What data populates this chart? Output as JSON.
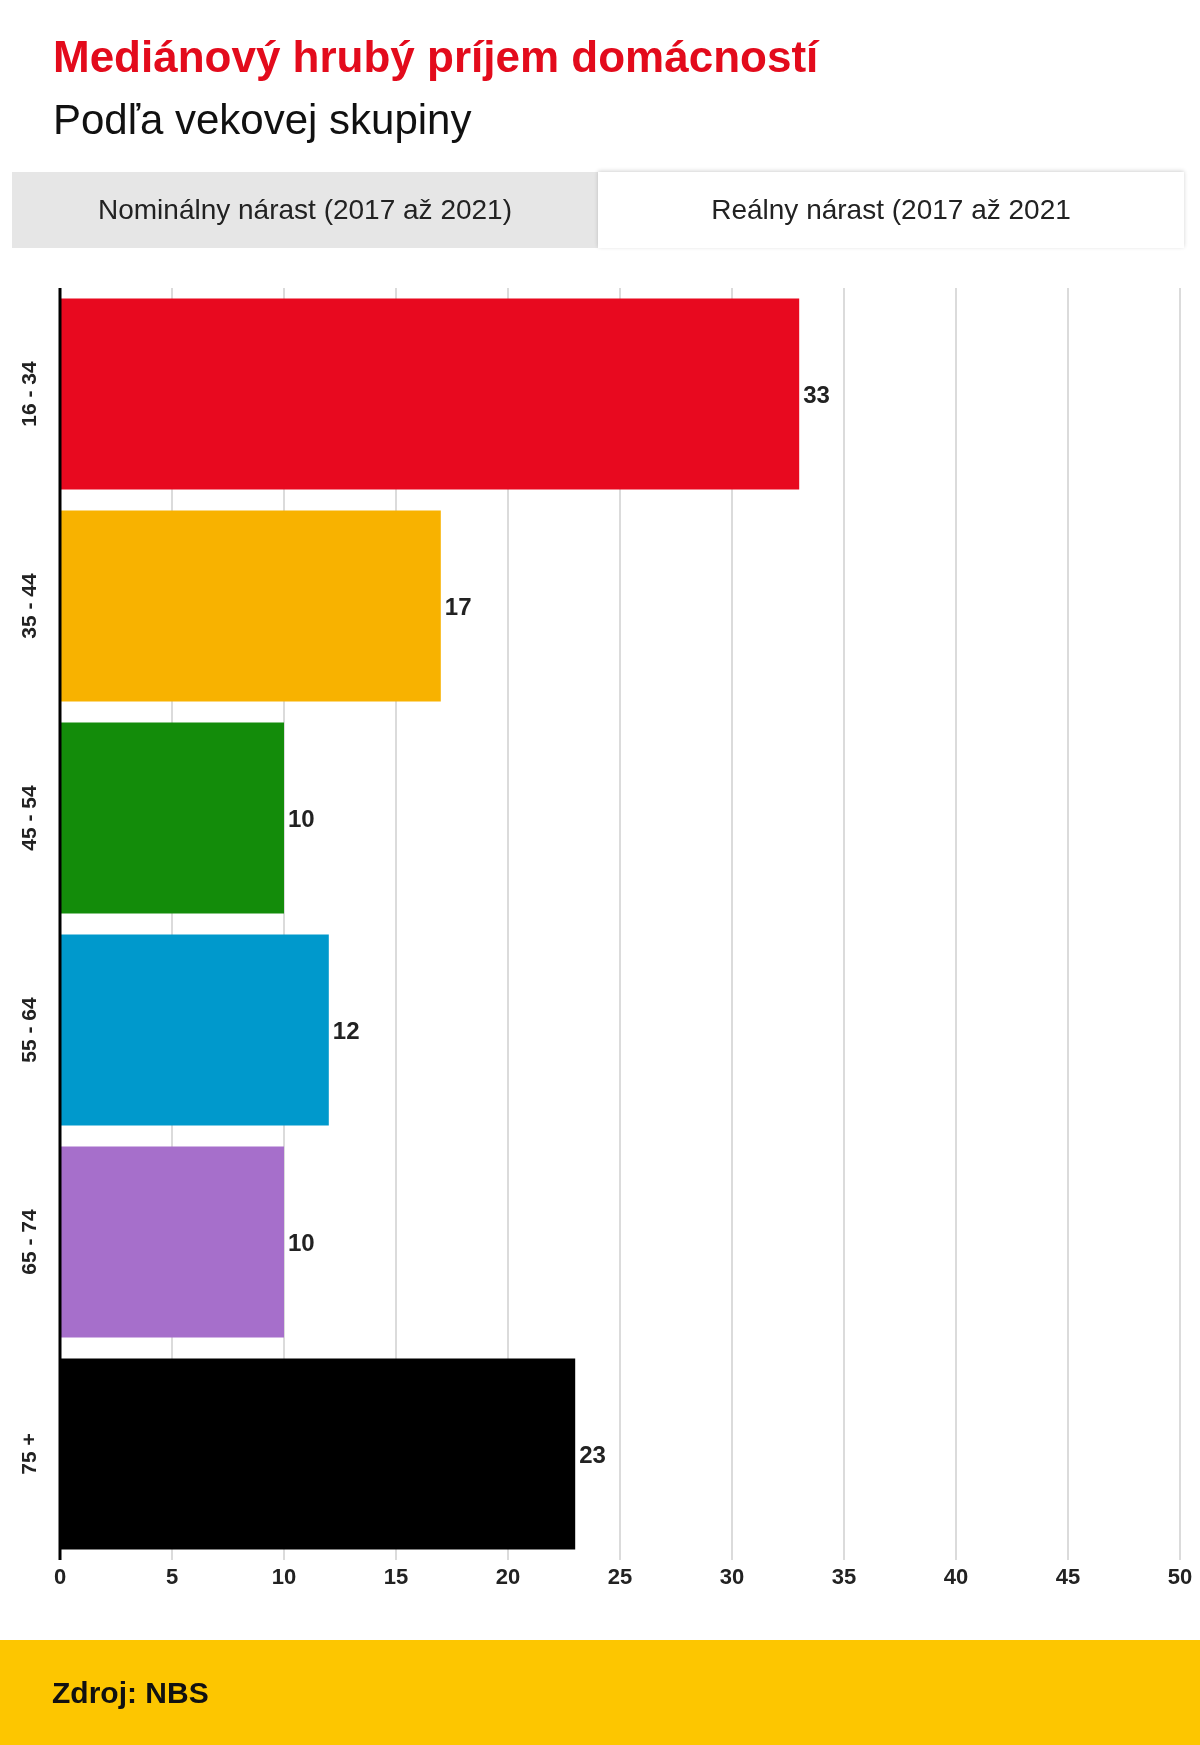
{
  "chart_data": {
    "type": "bar",
    "orientation": "horizontal",
    "title": "Mediánový hrubý príjem domácností",
    "subtitle": "Podľa vekovej skupiny",
    "annotations": [
      "Nominálny nárast (2017 až 2021)",
      "Reálny nárast (2017 až 2021",
      "Zdroj: NBS"
    ],
    "categories": [
      "16 - 34",
      "35 - 44",
      "45 - 54",
      "55 - 64",
      "65 - 74",
      "75 +"
    ],
    "values": [
      33,
      17,
      10,
      12,
      10,
      23
    ],
    "colors": [
      "#e8091f",
      "#f8b200",
      "#138c0a",
      "#0099cc",
      "#a66fcb",
      "#000000"
    ],
    "xlim": [
      0,
      50
    ],
    "xticks": [
      0,
      5,
      10,
      15,
      20,
      25,
      30,
      35,
      40,
      45,
      50
    ],
    "grid": "x",
    "data_labels": true
  }
}
